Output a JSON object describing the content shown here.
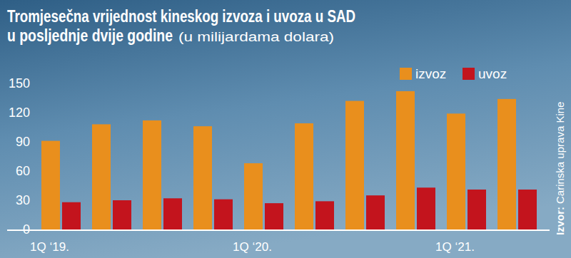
{
  "chart_data": {
    "type": "bar",
    "title": [
      "Tromjesečna vrijednost kineskog izvoza i uvoza u SAD",
      "u posljednje dvije godine"
    ],
    "subtitle": "(u milijardama dolara)",
    "source_label": "Izvor:",
    "source": "Carinska uprava Kine",
    "categories": [
      "1Q ‘19.",
      null,
      null,
      null,
      "1Q ‘20.",
      null,
      null,
      null,
      "1Q ‘21.",
      null
    ],
    "series": [
      {
        "name": "izvoz",
        "color": "#e98f1d",
        "values": [
          91,
          108,
          112,
          106,
          68,
          109,
          132,
          142,
          119,
          134
        ]
      },
      {
        "name": "uvoz",
        "color": "#c3141d",
        "values": [
          28,
          30,
          32,
          31,
          27,
          29,
          35,
          43,
          41,
          41
        ]
      }
    ],
    "ylim": [
      0,
      150
    ],
    "yticks": [
      0,
      30,
      60,
      90,
      120,
      150
    ],
    "grid": false,
    "legend": "top-right",
    "data_labels": false
  }
}
